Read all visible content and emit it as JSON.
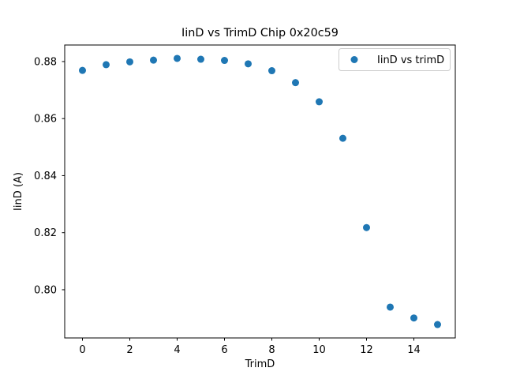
{
  "window": {
    "background_color": "#ffffff"
  },
  "chart_data": {
    "type": "scatter",
    "title": "IinD vs TrimD Chip 0x20c59",
    "xlabel": "TrimD",
    "ylabel": "IinD (A)",
    "grid": false,
    "xlim": [
      -0.75,
      15.75
    ],
    "ylim": [
      0.7831,
      0.8858
    ],
    "xtick_values": [
      0,
      2,
      4,
      6,
      8,
      10,
      12,
      14
    ],
    "xtick_labels": [
      "0",
      "2",
      "4",
      "6",
      "8",
      "10",
      "12",
      "14"
    ],
    "ytick_values": [
      0.8,
      0.82,
      0.84,
      0.86,
      0.88
    ],
    "ytick_labels": [
      "0.80",
      "0.82",
      "0.84",
      "0.86",
      "0.88"
    ],
    "legend": {
      "position": "upper right",
      "border_color": "#cccccc",
      "background_color": "#ffffff",
      "entries": [
        {
          "label": "IinD vs trimD",
          "marker": "circle",
          "marker_color": "#1f77b4"
        }
      ]
    },
    "series": [
      {
        "name": "IinD vs trimD",
        "marker": "circle",
        "color": "#1f77b4",
        "x": [
          0,
          1,
          2,
          3,
          4,
          5,
          6,
          7,
          8,
          9,
          10,
          11,
          12,
          13,
          14,
          15
        ],
        "y": [
          0.8769,
          0.8789,
          0.8799,
          0.8805,
          0.8811,
          0.8808,
          0.8804,
          0.8792,
          0.8768,
          0.8726,
          0.8659,
          0.8531,
          0.8218,
          0.7939,
          0.7901,
          0.7878
        ]
      }
    ]
  }
}
